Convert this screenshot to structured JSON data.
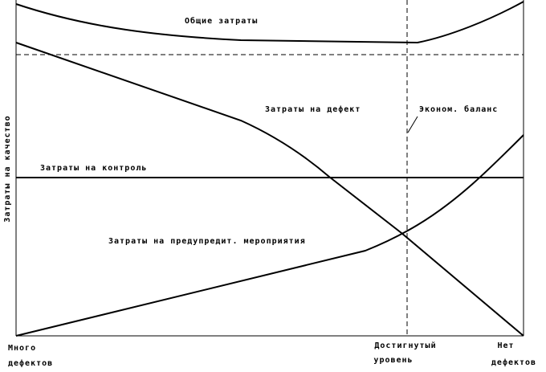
{
  "y_axis_label": "Затраты на качество",
  "curves": [
    {
      "label": "Общие затраты"
    },
    {
      "label": "Затраты на дефект"
    },
    {
      "label": "Эконом. баланс"
    },
    {
      "label": "Затраты на контроль"
    },
    {
      "label": "Затраты на предупредит. мероприятия"
    }
  ],
  "x_labels": [
    {
      "lines": [
        "Много",
        "дефектов"
      ]
    },
    {
      "lines": [
        "Достигнутый",
        "уровень"
      ]
    },
    {
      "lines": [
        "Нет",
        "дефектов"
      ]
    }
  ]
}
